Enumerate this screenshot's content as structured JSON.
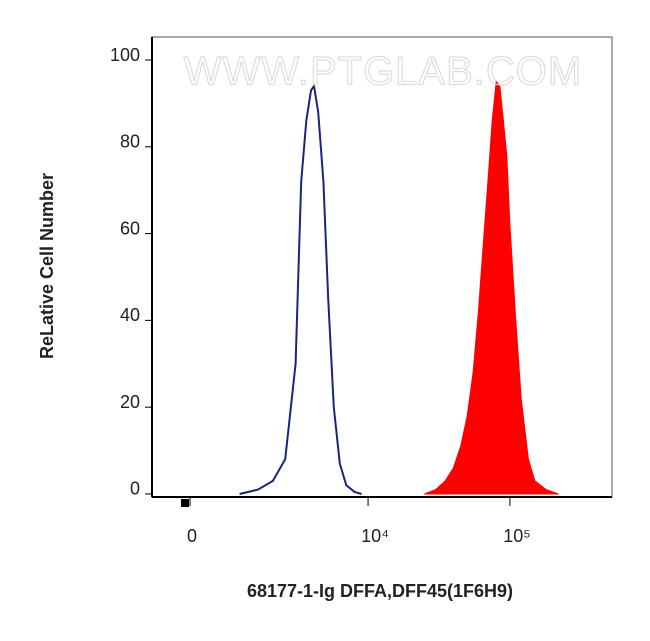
{
  "chart_data": {
    "type": "histogram-overlay",
    "watermark": "WWW.PTGLAB.COM",
    "xlabel": "68177-1-Ig DFFA,DFF45(1F6H9)",
    "ylabel": "ReLative Cell Number",
    "xscale": "biexponential",
    "linear_width": 1120,
    "xlim": [
      -735,
      523000
    ],
    "ylim": [
      -0.7,
      105.3
    ],
    "xticks": [
      {
        "value": 0,
        "label": "0"
      },
      {
        "value": 10000,
        "label": "10⁴"
      },
      {
        "value": 100000,
        "label": "10⁵"
      }
    ],
    "yticks": [
      0,
      20,
      40,
      60,
      80,
      100
    ],
    "series": [
      {
        "color": "#1a237e",
        "filled": false,
        "x": [
          1000,
          1500,
          2000,
          2500,
          3000,
          3300,
          3600,
          3900,
          4100,
          4400,
          4800,
          5200,
          5700,
          6300,
          7000,
          8000,
          9000
        ],
        "values": [
          0,
          1,
          3,
          8,
          30,
          72,
          86,
          93,
          94,
          88,
          72,
          45,
          20,
          7,
          2,
          0.5,
          0
        ]
      },
      {
        "color": "#ff0000",
        "filled": true,
        "x": [
          25000,
          30000,
          35000,
          40000,
          45000,
          50000,
          55000,
          60000,
          65000,
          70000,
          75000,
          80000,
          85000,
          90000,
          95000,
          100000,
          110000,
          120000,
          135000,
          150000,
          180000,
          220000
        ],
        "values": [
          0,
          1,
          3,
          6,
          11,
          18,
          28,
          42,
          58,
          72,
          86,
          95,
          94,
          86,
          78,
          62,
          40,
          22,
          8,
          3,
          1,
          0
        ]
      }
    ]
  }
}
